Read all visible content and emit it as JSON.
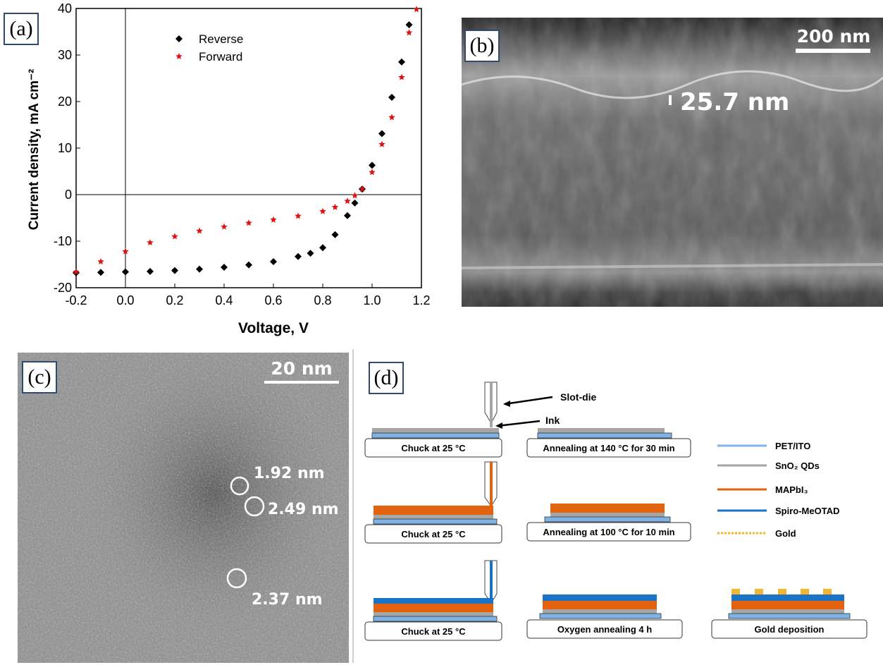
{
  "panels": {
    "a": {
      "label": "(a)"
    },
    "b": {
      "label": "(b)",
      "scale_bar": "200 nm",
      "thickness": "25.7 nm"
    },
    "c": {
      "label": "(c)",
      "scale_bar": "20 nm",
      "particles": [
        "1.92 nm",
        "2.49 nm",
        "2.37 nm"
      ]
    },
    "d": {
      "label": "(d)",
      "slot_die": "Slot-die",
      "ink": "Ink",
      "steps": [
        "Chuck at 25 °C",
        "Annealing at 140 °C for 30 min",
        "Chuck at 25 °C",
        "Annealing at 100 °C for 10 min",
        "Chuck at 25 °C",
        "Oxygen annealing 4 h",
        "Gold deposition"
      ],
      "legend": [
        {
          "name": "PET/ITO",
          "color": "#7fb2e5"
        },
        {
          "name": "SnO₂ QDs",
          "color": "#a6a6a6"
        },
        {
          "name": "MAPbI₃",
          "color": "#e2620e"
        },
        {
          "name": "Spiro-MeOTAD",
          "color": "#1a73c6"
        },
        {
          "name": "Gold",
          "color": "#f2b630"
        }
      ]
    }
  },
  "chart_data": {
    "type": "scatter",
    "xlabel": "Voltage, V",
    "ylabel": "Current density, mA cm⁻²",
    "xlim": [
      -0.2,
      1.2
    ],
    "ylim": [
      -20,
      40
    ],
    "xticks": [
      "-0.2",
      "0.0",
      "0.2",
      "0.4",
      "0.6",
      "0.8",
      "1.0",
      "1.2"
    ],
    "yticks": [
      "-20",
      "-10",
      "0",
      "10",
      "20",
      "30",
      "40"
    ],
    "legend_position": "top-left",
    "series": [
      {
        "name": "Reverse",
        "marker": "diamond",
        "color": "#000000",
        "x": [
          -0.2,
          -0.1,
          0.0,
          0.1,
          0.2,
          0.3,
          0.4,
          0.5,
          0.6,
          0.7,
          0.75,
          0.8,
          0.85,
          0.9,
          0.93,
          0.96,
          1.0,
          1.04,
          1.08,
          1.12,
          1.15
        ],
        "y": [
          -16.8,
          -16.7,
          -16.6,
          -16.5,
          -16.3,
          -16.0,
          -15.6,
          -15.1,
          -14.4,
          -13.3,
          -12.6,
          -11.4,
          -8.6,
          -4.5,
          -1.8,
          1.2,
          6.3,
          13.1,
          20.9,
          28.5,
          36.5
        ]
      },
      {
        "name": "Forward",
        "marker": "star",
        "color": "#e01010",
        "x": [
          -0.2,
          -0.1,
          0.0,
          0.1,
          0.2,
          0.3,
          0.4,
          0.5,
          0.6,
          0.7,
          0.8,
          0.85,
          0.9,
          0.93,
          0.96,
          1.0,
          1.04,
          1.08,
          1.12,
          1.15,
          1.18
        ],
        "y": [
          -16.6,
          -14.4,
          -12.2,
          -10.3,
          -9.0,
          -7.8,
          -6.9,
          -6.1,
          -5.4,
          -4.6,
          -3.6,
          -2.7,
          -1.4,
          -0.2,
          1.2,
          4.8,
          10.8,
          16.6,
          25.2,
          34.8,
          39.8
        ]
      }
    ]
  }
}
